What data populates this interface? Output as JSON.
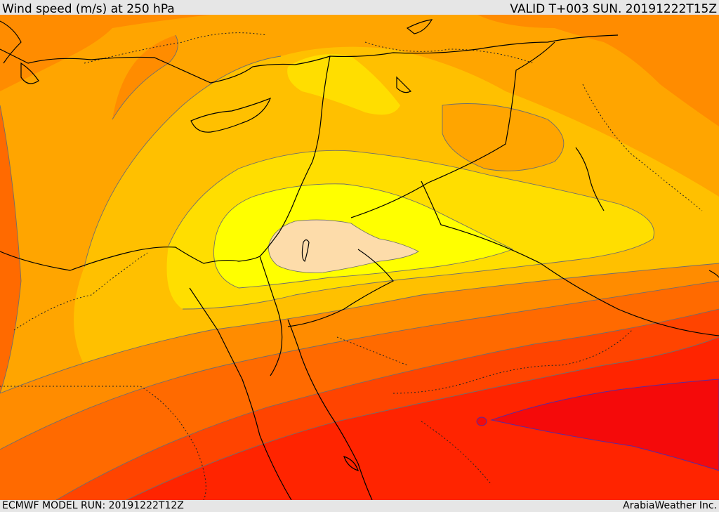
{
  "header": {
    "title": "Wind speed (m/s) at 250 hPa",
    "valid": "VALID T+003 SUN. 20191222T15Z"
  },
  "footer": {
    "model_run": "ECMWF MODEL RUN: 20191222T12Z",
    "credit": "ArabiaWeather Inc."
  },
  "map": {
    "field": "wind speed",
    "level": "250 hPa",
    "fill_colors": {
      "peak_core": "#fddcaa",
      "bright_yellow": "#ffff00",
      "yellow": "#ffde00",
      "yellow_orange": "#ffc000",
      "light_orange": "#ffa500",
      "orange": "#ff8c00",
      "dark_orange": "#ff6a00",
      "red_orange": "#ff4400",
      "red": "#ff2400",
      "deep_red": "#f50a0a"
    },
    "line_colors": {
      "coastline": "#000000",
      "border": "#000000",
      "contour": "#6e6e6e"
    }
  }
}
